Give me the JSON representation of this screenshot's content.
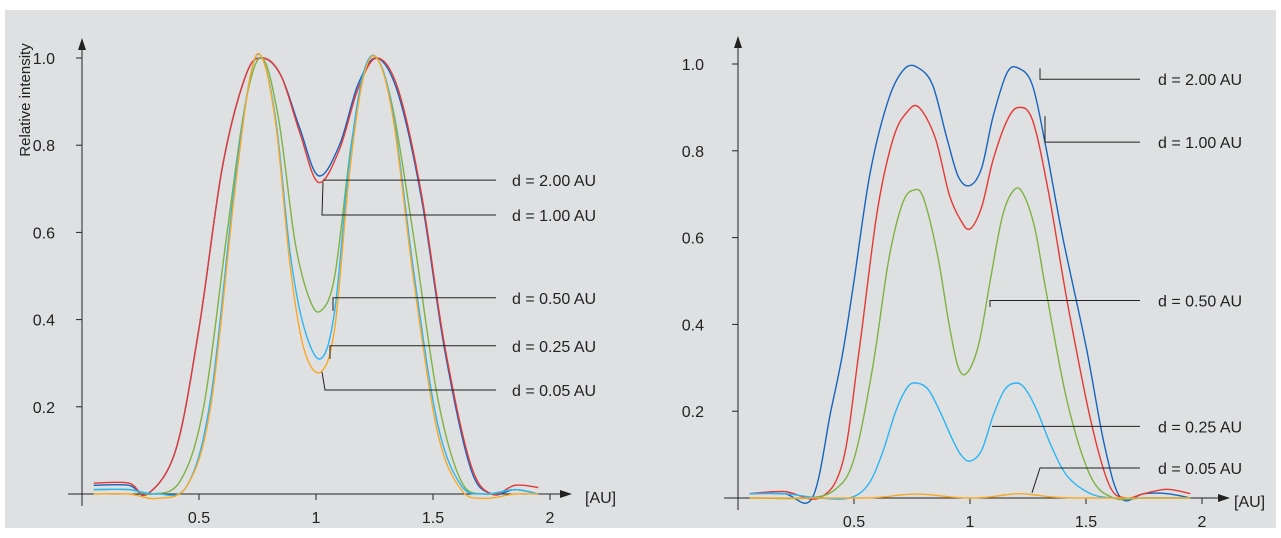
{
  "chart_data": [
    {
      "type": "line",
      "ylabel": "Relative intensity",
      "xlabel": "[AU]",
      "xlim": [
        0,
        2.05
      ],
      "ylim": [
        0,
        1.05
      ],
      "xticks": [
        0.5,
        1,
        1.5,
        2
      ],
      "yticks": [
        0.2,
        0.4,
        0.6,
        0.8,
        1.0
      ],
      "xtick_labels": [
        "0.5",
        "1",
        "1.5",
        "2"
      ],
      "ytick_labels": [
        "0.2",
        "0.4",
        "0.6",
        "0.8",
        "1.0"
      ],
      "grid": false,
      "series": [
        {
          "name": "d = 2.00 AU",
          "color": "#1565c0",
          "x": [
            0.05,
            0.2,
            0.28,
            0.4,
            0.5,
            0.6,
            0.7,
            0.77,
            0.85,
            0.93,
            1.01,
            1.1,
            1.18,
            1.26,
            1.35,
            1.45,
            1.55,
            1.66,
            1.75,
            1.85,
            1.95
          ],
          "y": [
            0.02,
            0.02,
            0.0,
            0.1,
            0.38,
            0.75,
            0.96,
            1.0,
            0.96,
            0.84,
            0.73,
            0.8,
            0.94,
            1.0,
            0.92,
            0.68,
            0.33,
            0.06,
            0.0,
            0.01,
            0.0
          ]
        },
        {
          "name": "d = 1.00 AU",
          "color": "#e53935",
          "x": [
            0.05,
            0.2,
            0.28,
            0.4,
            0.5,
            0.6,
            0.7,
            0.77,
            0.85,
            0.93,
            1.01,
            1.1,
            1.18,
            1.26,
            1.35,
            1.45,
            1.55,
            1.66,
            1.75,
            1.85,
            1.95
          ],
          "y": [
            0.025,
            0.025,
            0.0,
            0.1,
            0.38,
            0.75,
            0.96,
            1.0,
            0.96,
            0.83,
            0.715,
            0.79,
            0.93,
            1.0,
            0.93,
            0.69,
            0.34,
            0.07,
            0.0,
            0.02,
            0.015
          ]
        },
        {
          "name": "d = 0.50 AU",
          "color": "#7cb342",
          "x": [
            0.05,
            0.2,
            0.3,
            0.42,
            0.52,
            0.62,
            0.7,
            0.77,
            0.84,
            0.91,
            0.97,
            1.02,
            1.08,
            1.15,
            1.21,
            1.26,
            1.33,
            1.42,
            1.52,
            1.62,
            1.72,
            1.85,
            1.95
          ],
          "y": [
            0.01,
            0.01,
            0.0,
            0.03,
            0.2,
            0.6,
            0.9,
            1.0,
            0.86,
            0.58,
            0.45,
            0.42,
            0.5,
            0.8,
            0.97,
            1.0,
            0.88,
            0.58,
            0.22,
            0.03,
            0.0,
            0.01,
            0.0
          ]
        },
        {
          "name": "d = 0.25 AU",
          "color": "#29b6f6",
          "x": [
            0.05,
            0.2,
            0.32,
            0.45,
            0.55,
            0.65,
            0.72,
            0.77,
            0.83,
            0.89,
            0.95,
            1.02,
            1.08,
            1.14,
            1.2,
            1.26,
            1.33,
            1.42,
            1.52,
            1.62,
            1.72,
            1.85,
            1.95
          ],
          "y": [
            0.01,
            0.01,
            0.0,
            0.02,
            0.22,
            0.7,
            0.96,
            1.0,
            0.85,
            0.55,
            0.38,
            0.31,
            0.42,
            0.75,
            0.96,
            1.0,
            0.87,
            0.5,
            0.16,
            0.02,
            0.0,
            0.01,
            0.0
          ]
        },
        {
          "name": "d = 0.05 AU",
          "color": "#f9a825",
          "x": [
            0.05,
            0.2,
            0.32,
            0.45,
            0.55,
            0.65,
            0.72,
            0.77,
            0.83,
            0.89,
            0.95,
            1.02,
            1.08,
            1.14,
            1.2,
            1.26,
            1.33,
            1.42,
            1.52,
            1.62,
            1.72,
            1.85,
            1.95
          ],
          "y": [
            0.0,
            0.0,
            -0.01,
            0.02,
            0.2,
            0.68,
            0.96,
            1.0,
            0.84,
            0.52,
            0.33,
            0.28,
            0.38,
            0.72,
            0.95,
            1.0,
            0.86,
            0.48,
            0.14,
            0.01,
            -0.01,
            0.0,
            0.0
          ]
        }
      ],
      "legend": [
        {
          "text": "d = 2.00 AU",
          "ly": 0.72
        },
        {
          "text": "d = 1.00 AU",
          "ly": 0.635
        },
        {
          "text": "d = 0.50 AU",
          "ly": 0.45
        },
        {
          "text": "d = 0.25 AU",
          "ly": 0.34
        },
        {
          "text": "d = 0.05 AU",
          "ly": 0.225
        }
      ]
    },
    {
      "type": "line",
      "xlabel": "[AU]",
      "xlim": [
        0,
        2.05
      ],
      "ylim": [
        0,
        1.05
      ],
      "xticks": [
        0.5,
        1,
        1.5,
        2
      ],
      "yticks": [
        0.2,
        0.4,
        0.6,
        0.8,
        1.0
      ],
      "xtick_labels": [
        "0.5",
        "1",
        "1.5",
        "2"
      ],
      "ytick_labels": [
        "0.2",
        "0.4",
        "0.6",
        "0.8",
        "1.0"
      ],
      "grid": false,
      "series": [
        {
          "name": "d = 2.00 AU",
          "color": "#1565c0",
          "x": [
            0.05,
            0.2,
            0.32,
            0.4,
            0.45,
            0.5,
            0.57,
            0.65,
            0.72,
            0.78,
            0.84,
            0.9,
            0.95,
            1.0,
            1.05,
            1.1,
            1.16,
            1.21,
            1.27,
            1.33,
            1.4,
            1.5,
            1.58,
            1.65,
            1.75,
            1.85,
            1.95
          ],
          "y": [
            0.01,
            0.01,
            0.0,
            0.2,
            0.33,
            0.5,
            0.75,
            0.92,
            0.99,
            0.99,
            0.95,
            0.83,
            0.74,
            0.72,
            0.76,
            0.88,
            0.98,
            0.99,
            0.95,
            0.8,
            0.6,
            0.35,
            0.12,
            0.0,
            0.01,
            0.01,
            0.0
          ]
        },
        {
          "name": "d = 1.00 AU",
          "color": "#e53935",
          "x": [
            0.05,
            0.2,
            0.35,
            0.45,
            0.52,
            0.6,
            0.67,
            0.73,
            0.78,
            0.85,
            0.91,
            0.96,
            1.0,
            1.05,
            1.1,
            1.16,
            1.21,
            1.27,
            1.34,
            1.42,
            1.52,
            1.6,
            1.67,
            1.75,
            1.85,
            1.95
          ],
          "y": [
            0.01,
            0.015,
            0.0,
            0.08,
            0.33,
            0.66,
            0.83,
            0.89,
            0.9,
            0.83,
            0.7,
            0.64,
            0.62,
            0.67,
            0.78,
            0.87,
            0.9,
            0.87,
            0.7,
            0.45,
            0.18,
            0.03,
            0.0,
            0.01,
            0.02,
            0.01
          ]
        },
        {
          "name": "d = 0.50 AU",
          "color": "#7cb342",
          "x": [
            0.05,
            0.3,
            0.42,
            0.5,
            0.58,
            0.65,
            0.71,
            0.76,
            0.8,
            0.86,
            0.91,
            0.95,
            0.99,
            1.04,
            1.09,
            1.14,
            1.19,
            1.23,
            1.28,
            1.33,
            1.42,
            1.52,
            1.62,
            1.75,
            1.95
          ],
          "y": [
            0.0,
            0.0,
            0.02,
            0.09,
            0.3,
            0.55,
            0.68,
            0.71,
            0.69,
            0.56,
            0.4,
            0.3,
            0.29,
            0.36,
            0.51,
            0.65,
            0.71,
            0.7,
            0.62,
            0.47,
            0.22,
            0.05,
            0.0,
            0.0,
            0.0
          ]
        },
        {
          "name": "d = 0.25 AU",
          "color": "#29b6f6",
          "x": [
            0.05,
            0.2,
            0.35,
            0.48,
            0.56,
            0.62,
            0.68,
            0.73,
            0.77,
            0.82,
            0.87,
            0.92,
            0.96,
            1.0,
            1.05,
            1.1,
            1.15,
            1.2,
            1.24,
            1.29,
            1.35,
            1.42,
            1.52,
            1.62,
            1.75,
            1.85,
            1.95
          ],
          "y": [
            0.01,
            0.01,
            0.0,
            0.0,
            0.03,
            0.1,
            0.2,
            0.255,
            0.265,
            0.25,
            0.2,
            0.14,
            0.1,
            0.085,
            0.11,
            0.19,
            0.25,
            0.265,
            0.25,
            0.2,
            0.12,
            0.05,
            0.01,
            0.0,
            0.0,
            0.0,
            0.0
          ]
        },
        {
          "name": "d = 0.05 AU",
          "color": "#f9a825",
          "x": [
            0.05,
            0.5,
            0.62,
            0.7,
            0.77,
            0.84,
            0.92,
            1.0,
            1.08,
            1.15,
            1.21,
            1.28,
            1.36,
            1.5,
            1.95
          ],
          "y": [
            0.0,
            0.0,
            0.002,
            0.007,
            0.009,
            0.007,
            0.002,
            0.0,
            0.002,
            0.007,
            0.01,
            0.007,
            0.002,
            0.0,
            0.0
          ]
        }
      ],
      "legend": [
        {
          "text": "d = 2.00 AU",
          "ly": 0.965
        },
        {
          "text": "d = 1.00 AU",
          "ly": 0.82
        },
        {
          "text": "d = 0.50 AU",
          "ly": 0.455
        },
        {
          "text": "d = 0.25 AU",
          "ly": 0.165
        },
        {
          "text": "d = 0.05 AU",
          "ly": 0.065
        }
      ]
    }
  ]
}
